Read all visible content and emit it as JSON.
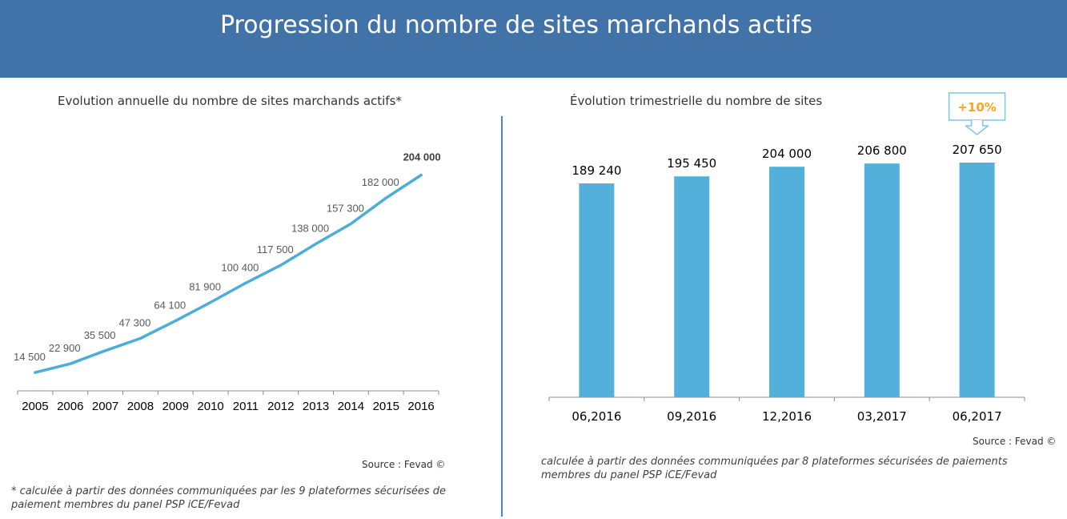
{
  "header": {
    "title": "Progression du nombre de sites marchands actifs"
  },
  "colors": {
    "banner": "#4172a8",
    "line": "#4baed8",
    "bar": "#52b0da",
    "badge_text": "#f5a623",
    "badge_border": "#7ec6e8",
    "divider": "#4a86c8"
  },
  "chart_data": [
    {
      "type": "line",
      "title": "Evolution annuelle du nombre de sites marchands actifs*",
      "categories": [
        "2005",
        "2006",
        "2007",
        "2008",
        "2009",
        "2010",
        "2011",
        "2012",
        "2013",
        "2014",
        "2015",
        "2016"
      ],
      "values": [
        14500,
        22900,
        35500,
        47300,
        64100,
        81900,
        100400,
        117500,
        138000,
        157300,
        182000,
        204000
      ],
      "data_labels": [
        "14 500",
        "22 900",
        "35 500",
        "47 300",
        "64 100",
        "81 900",
        "100 400",
        "117 500",
        "138 000",
        "157 300",
        "182 000",
        "204 000"
      ],
      "highlight_last_label": true,
      "grid": false,
      "source": "Source : Fevad ©",
      "footnote": "* calculée à partir des données communiquées par les 9 plateformes sécurisées de paiement membres du panel PSP iCE/Fevad"
    },
    {
      "type": "bar",
      "title": "Évolution trimestrielle du nombre de sites",
      "categories": [
        "06,2016",
        "09,2016",
        "12,2016",
        "03,2017",
        "06,2017"
      ],
      "values": [
        189240,
        195450,
        204000,
        206800,
        207650
      ],
      "data_labels": [
        "189 240",
        "195 450",
        "204 000",
        "206 800",
        "207 650"
      ],
      "annotation": "+10%",
      "grid": false,
      "source": "Source : Fevad ©",
      "footnote": "calculée à partir des données communiquées par 8 plateformes sécurisées de paiements membres du panel PSP iCE/Fevad"
    }
  ]
}
